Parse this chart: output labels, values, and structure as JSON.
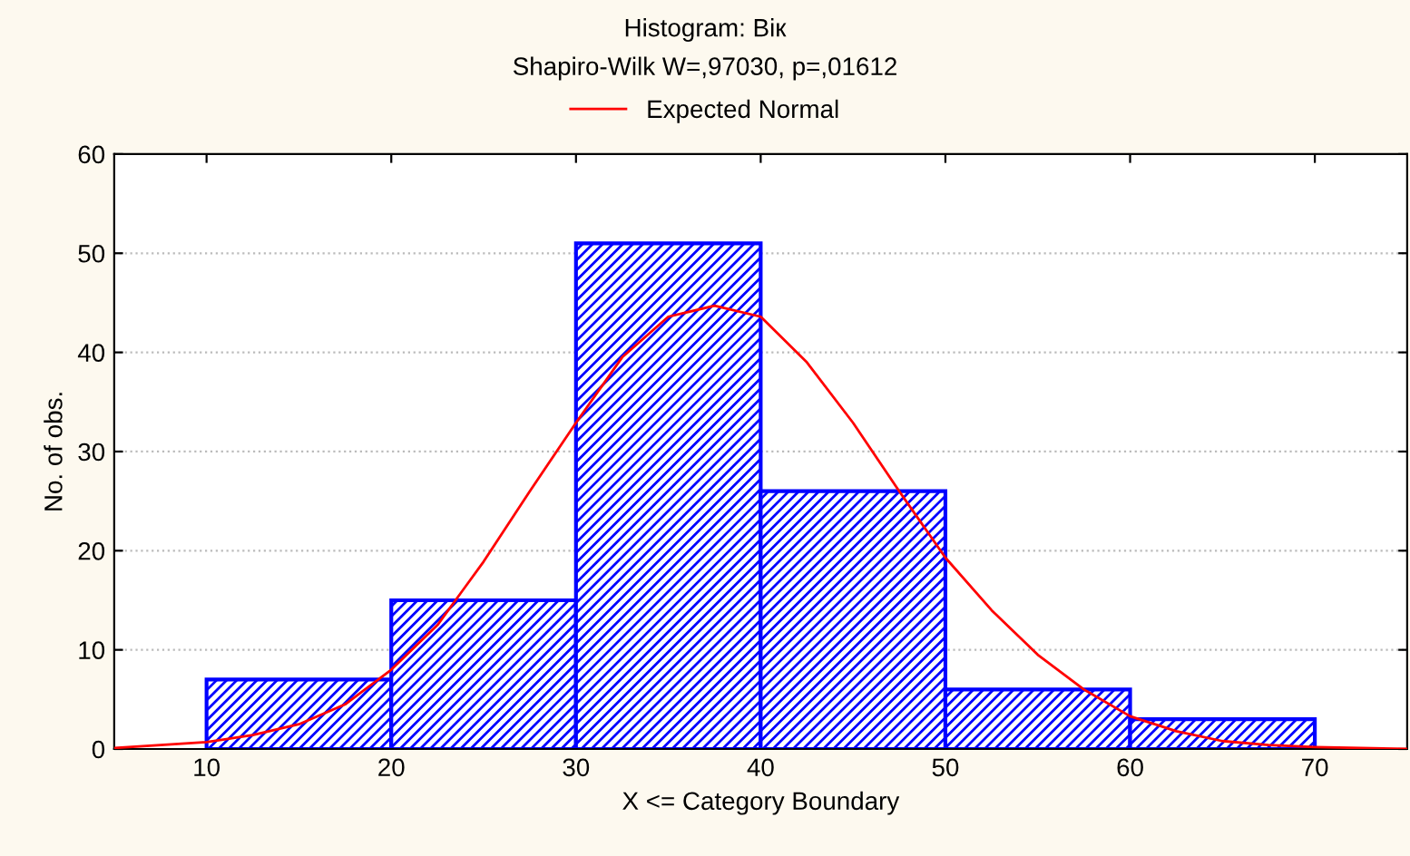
{
  "chart_data": {
    "type": "histogram",
    "title": "Histogram: Вік",
    "subtitle": "Shapiro-Wilk W=,97030, p=,01612",
    "xlabel": "X <= Category Boundary",
    "ylabel": "No. of obs.",
    "bins": [
      10,
      20,
      30,
      40,
      50,
      60,
      70
    ],
    "values": [
      7,
      15,
      51,
      26,
      6,
      3
    ],
    "color": "#0000ff",
    "series": [
      {
        "type": "line",
        "name": "Expected Normal",
        "color": "#ff0000",
        "x": [
          5,
          10,
          12.5,
          15,
          17.5,
          20,
          22.5,
          25,
          27.5,
          30,
          32.5,
          35,
          37.5,
          40,
          42.5,
          45,
          47.5,
          50,
          52.5,
          55,
          57.5,
          60,
          62.5,
          65,
          67.5,
          70,
          75
        ],
        "values": [
          0.1,
          0.7,
          1.4,
          2.5,
          4.5,
          8,
          12.5,
          18.9,
          26,
          32.9,
          39.5,
          43.6,
          44.7,
          43.6,
          39,
          32.9,
          26,
          19.3,
          14,
          9.5,
          6,
          3.3,
          1.8,
          0.8,
          0.4,
          0.2,
          0
        ]
      }
    ],
    "xlim": [
      5,
      75
    ],
    "ylim": [
      0,
      60
    ],
    "xticks": [
      10,
      20,
      30,
      40,
      50,
      60,
      70
    ],
    "yticks": [
      0,
      10,
      20,
      30,
      40,
      50,
      60
    ],
    "grid": "y",
    "legend": "top"
  }
}
